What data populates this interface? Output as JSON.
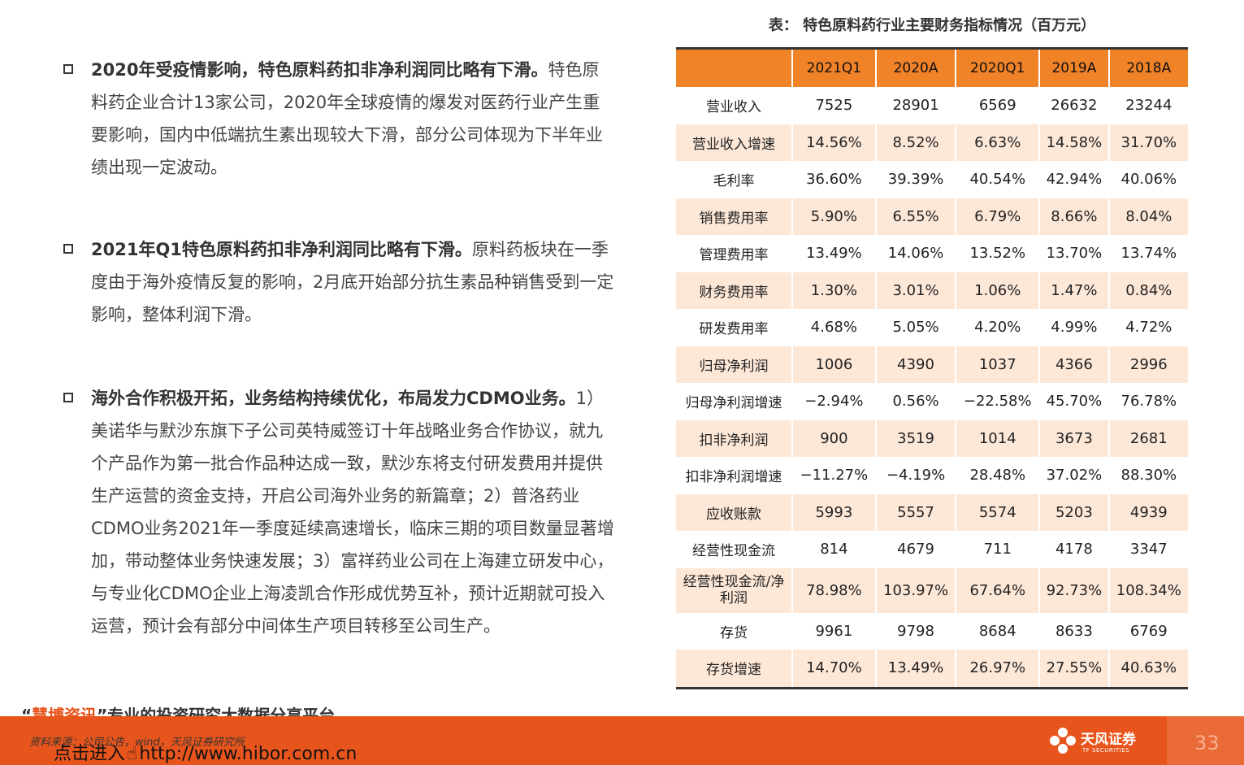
{
  "bullets": [
    {
      "bold": "2020年受疫情影响，特色原料药扣非净利润同比略有下滑。",
      "body": "特色原料药企业合计13家公司，2020年全球疫情的爆发对医药行业产生重要影响，国内中低端抗生素出现较大下滑，部分公司体现为下半年业绩出现一定波动。"
    },
    {
      "bold": "2021年Q1特色原料药扣非净利润同比略有下滑。",
      "body": "原料药板块在一季度由于海外疫情反复的影响，2月底开始部分抗生素品种销售受到一定影响，整体利润下滑。"
    },
    {
      "bold": "海外合作积极开拓，业务结构持续优化，布局发力CDMO业务。",
      "body": "1）美诺华与默沙东旗下子公司英特威签订十年战略业务合作协议，就九个产品作为第一批合作品种达成一致，默沙东将支付研发费用并提供生产运营的资金支持，开启公司海外业务的新篇章；2）普洛药业CDMO业务2021年一季度延续高速增长，临床三期的项目数量显著增加，带动整体业务快速发展；3）富祥药业公司在上海建立研发中心，与专业化CDMO企业上海凌凯合作形成优势互补，预计近期就可投入运营，预计会有部分中间体生产项目转移至公司生产。"
    }
  ],
  "table": {
    "caption": "表： 特色原料药行业主要财务指标情况（百万元）",
    "header": [
      "",
      "2021Q1",
      "2020A",
      "2020Q1",
      "2019A",
      "2018A"
    ],
    "rows": [
      [
        "营业收入",
        "7525",
        "28901",
        "6569",
        "26632",
        "23244"
      ],
      [
        "营业收入增速",
        "14.56%",
        "8.52%",
        "6.63%",
        "14.58%",
        "31.70%"
      ],
      [
        "毛利率",
        "36.60%",
        "39.39%",
        "40.54%",
        "42.94%",
        "40.06%"
      ],
      [
        "销售费用率",
        "5.90%",
        "6.55%",
        "6.79%",
        "8.66%",
        "8.04%"
      ],
      [
        "管理费用率",
        "13.49%",
        "14.06%",
        "13.52%",
        "13.70%",
        "13.74%"
      ],
      [
        "财务费用率",
        "1.30%",
        "3.01%",
        "1.06%",
        "1.47%",
        "0.84%"
      ],
      [
        "研发费用率",
        "4.68%",
        "5.05%",
        "4.20%",
        "4.99%",
        "4.72%"
      ],
      [
        "归母净利润",
        "1006",
        "4390",
        "1037",
        "4366",
        "2996"
      ],
      [
        "归母净利润增速",
        "−2.94%",
        "0.56%",
        "−22.58%",
        "45.70%",
        "76.78%"
      ],
      [
        "扣非净利润",
        "900",
        "3519",
        "1014",
        "3673",
        "2681"
      ],
      [
        "扣非净利润增速",
        "−11.27%",
        "−4.19%",
        "28.48%",
        "37.02%",
        "88.30%"
      ],
      [
        "应收账款",
        "5993",
        "5557",
        "5574",
        "5203",
        "4939"
      ],
      [
        "经营性现金流",
        "814",
        "4679",
        "711",
        "4178",
        "3347"
      ],
      [
        "经营性现金流/净利润",
        "78.98%",
        "103.97%",
        "67.64%",
        "92.73%",
        "108.34%"
      ],
      [
        "存货",
        "9961",
        "9798",
        "8684",
        "8633",
        "6769"
      ],
      [
        "存货增速",
        "14.70%",
        "13.49%",
        "26.97%",
        "27.55%",
        "40.63%"
      ]
    ]
  },
  "footer": {
    "watermark_open": "“",
    "watermark_highlight": "慧博资讯",
    "watermark_rest": "”专业的投资研究大数据分享平台",
    "source": "资料来源：公司公告，wind，天风证券研究所",
    "link_prefix": "点击进入",
    "link_url": "http://www.hibor.com.cn",
    "logo_zh": "天风证券",
    "logo_en": "TF SECURITIES",
    "page_number": "33"
  },
  "colors": {
    "header_orange": "#f08228",
    "row_shade": "#fde8d8",
    "footer_orange": "#e8551c"
  }
}
